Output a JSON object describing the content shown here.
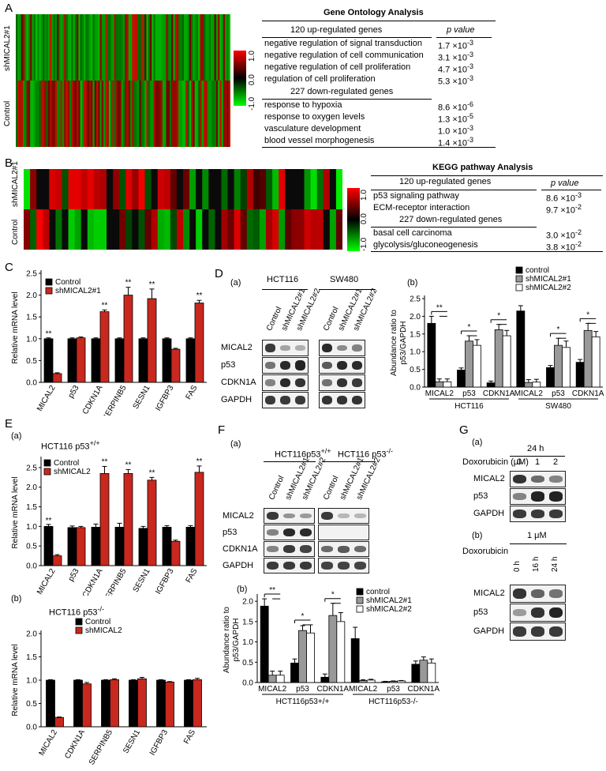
{
  "panels": [
    "A",
    "B",
    "C",
    "D",
    "E",
    "F",
    "G"
  ],
  "heatmapA": {
    "row_labels": [
      "shMICAL2#1",
      "Control"
    ],
    "scale_labels": [
      "1.0",
      "0.0",
      "-1.0"
    ],
    "colors": {
      "up": "#ff0000",
      "mid": "#000000",
      "down": "#00ff00"
    }
  },
  "go": {
    "title": "Gene Ontology Analysis",
    "col_header": "p value",
    "up_header": "120 up-regulated genes",
    "down_header": "227 down-regulated genes",
    "up_terms": [
      {
        "term": "negative regulation of signal transduction",
        "p": "1.7 ×10",
        "exp": "-3"
      },
      {
        "term": "negative regulation of cell communication",
        "p": "3.1 ×10",
        "exp": "-3"
      },
      {
        "term": "negative regulation of cell proliferation",
        "p": "4.7 ×10",
        "exp": "-3"
      },
      {
        "term": "regulation of cell proliferation",
        "p": "5.3 ×10",
        "exp": "-3"
      }
    ],
    "down_terms": [
      {
        "term": "response to hypoxia",
        "p": "8.6 ×10",
        "exp": "-6"
      },
      {
        "term": "response to oxygen levels",
        "p": "1.3 ×10",
        "exp": "-5"
      },
      {
        "term": "vasculature development",
        "p": "1.0 ×10",
        "exp": "-3"
      },
      {
        "term": "blood vessel morphogenesis",
        "p": "1.4 ×10",
        "exp": "-3"
      }
    ]
  },
  "heatmapB": {
    "row_labels": [
      "shMICAL2#1",
      "Control"
    ],
    "scale_labels": [
      "1.0",
      "0.0",
      "-1.0"
    ]
  },
  "kegg": {
    "title": "KEGG pathway Analysis",
    "col_header": "p value",
    "up_header": "120 up-regulated genes",
    "down_header": "227 down-regulated genes",
    "up_terms": [
      {
        "term": "p53 signaling pathway",
        "p": "8.6 ×10",
        "exp": "-3"
      },
      {
        "term": "ECM-receptor interaction",
        "p": "9.7 ×10",
        "exp": "-2"
      }
    ],
    "down_terms": [
      {
        "term": "basal cell carcinoma",
        "p": "3.0 ×10",
        "exp": "-2"
      },
      {
        "term": "glycolysis/gluconeogenesis",
        "p": "3.8 ×10",
        "exp": "-2"
      }
    ]
  },
  "panelD": {
    "sub_a": "(a)",
    "sub_b": "(b)",
    "cell_lines": [
      "HCT116",
      "SW480"
    ],
    "lane_labels": [
      "Control",
      "shMICAL2#1",
      "shMICAL2#2"
    ],
    "row_labels": [
      "MICAL2",
      "p53",
      "CDKN1A",
      "GAPDH"
    ]
  },
  "panelE": {
    "sub_a": "(a)",
    "title_a": "HCT116 p53",
    "sup_a": "+/+",
    "sub_b": "(b)",
    "title_b": "HCT116 p53",
    "sup_b": "-/-"
  },
  "panelF": {
    "sub_a": "(a)",
    "sub_b": "(b)",
    "groups": [
      {
        "name": "HCT116p53",
        "sup": "+/+"
      },
      {
        "name": "HCT116 p53",
        "sup": "-/-"
      }
    ],
    "lane_labels": [
      "Control",
      "shMICAL2#1",
      "shMICAL2#2"
    ],
    "row_labels": [
      "MICAL2",
      "p53",
      "CDKN1A",
      "GAPDH"
    ]
  },
  "panelG": {
    "sub_a": "(a)",
    "time_a": "24 h",
    "drug_a": "Doxorubicin (μM)",
    "doses": [
      "0",
      "1",
      "2"
    ],
    "sub_b": "(b)",
    "dose_b": "1 μM",
    "drug_b": "Doxorubicin",
    "times": [
      "0 h",
      "16 h",
      "24 h"
    ],
    "row_labels_a": [
      "MICAL2",
      "p53",
      "GAPDH"
    ],
    "row_labels_b": [
      "MICAL2",
      "p53",
      "GAPDH"
    ]
  },
  "chart_data": [
    {
      "id": "C",
      "type": "bar",
      "categories": [
        "MICAL2",
        "p53",
        "CDKN1A",
        "SERPINB5",
        "SESN1",
        "IGFBP3",
        "FAS"
      ],
      "series": [
        {
          "name": "Control",
          "color": "#000000",
          "values": [
            1.0,
            1.0,
            1.0,
            1.0,
            1.0,
            1.0,
            1.0
          ],
          "err": [
            0.02,
            0.02,
            0.02,
            0.02,
            0.02,
            0.02,
            0.02
          ]
        },
        {
          "name": "shMICAL2#1",
          "color": "#c8281e",
          "values": [
            0.2,
            1.02,
            1.62,
            2.0,
            1.92,
            0.76,
            1.82
          ],
          "err": [
            0.02,
            0.02,
            0.04,
            0.18,
            0.22,
            0.02,
            0.06
          ]
        }
      ],
      "sig": [
        "**",
        "",
        "**",
        "**",
        "**",
        "",
        "**"
      ],
      "ylabel": "Relative mRNA level",
      "yticks": [
        "0.0",
        "0.5",
        "1.0",
        "1.5",
        "2.0",
        "2.5"
      ],
      "ylim": [
        0,
        2.5
      ]
    },
    {
      "id": "D(b)",
      "type": "bar",
      "groups": [
        "HCT116",
        "SW480"
      ],
      "categories": [
        "MICAL2",
        "p53",
        "CDKN1A",
        "MICAL2",
        "p53",
        "CDKN1A"
      ],
      "series": [
        {
          "name": "control",
          "color": "#000000",
          "values": [
            1.8,
            0.48,
            0.12,
            2.15,
            0.55,
            0.7
          ],
          "err": [
            0.2,
            0.06,
            0.05,
            0.15,
            0.06,
            0.08
          ]
        },
        {
          "name": "shMICAL2#1",
          "color": "#999999",
          "values": [
            0.15,
            1.3,
            1.62,
            0.13,
            1.18,
            1.6
          ],
          "err": [
            0.08,
            0.15,
            0.15,
            0.08,
            0.2,
            0.2
          ]
        },
        {
          "name": "shMICAL2#2",
          "color": "#ffffff",
          "values": [
            0.15,
            1.18,
            1.45,
            0.14,
            1.12,
            1.42
          ],
          "err": [
            0.08,
            0.16,
            0.15,
            0.08,
            0.18,
            0.15
          ]
        }
      ],
      "sig": [
        "**",
        "*",
        "*",
        "",
        "*",
        "*"
      ],
      "ylabel": "Abundance ratio to p53/GAPDH",
      "yticks": [
        "0.0",
        "0.5",
        "1.0",
        "1.5",
        "2.0",
        "2.5"
      ],
      "ylim": [
        0,
        2.5
      ]
    },
    {
      "id": "E(a)",
      "type": "bar",
      "categories": [
        "MICAL2",
        "p53",
        "CDKN1A",
        "SERPINB5",
        "SESN1",
        "IGFBP3",
        "FAS"
      ],
      "series": [
        {
          "name": "Control",
          "color": "#000000",
          "values": [
            1.0,
            0.97,
            0.98,
            0.98,
            0.95,
            0.98,
            0.98
          ],
          "err": [
            0.05,
            0.04,
            0.08,
            0.1,
            0.05,
            0.04,
            0.04
          ]
        },
        {
          "name": "shMICAL2",
          "color": "#c8281e",
          "values": [
            0.25,
            0.97,
            2.35,
            2.35,
            2.18,
            0.62,
            2.38
          ],
          "err": [
            0.03,
            0.03,
            0.18,
            0.1,
            0.07,
            0.03,
            0.16
          ]
        }
      ],
      "sig": [
        "**",
        "",
        "**",
        "**",
        "**",
        "",
        "**"
      ],
      "ylabel": "Relative mRNA level",
      "yticks": [
        "0.0",
        "0.5",
        "1.0",
        "1.5",
        "2.0",
        "2.5"
      ],
      "ylim": [
        0,
        2.7
      ]
    },
    {
      "id": "E(b)",
      "type": "bar",
      "categories": [
        "MICAL2",
        "CDKN1A",
        "SERPINB5",
        "SESN1",
        "IGFBP3",
        "FAS"
      ],
      "series": [
        {
          "name": "Control",
          "color": "#000000",
          "values": [
            1.0,
            1.0,
            1.0,
            1.0,
            1.0,
            1.0
          ],
          "err": [
            0.01,
            0.01,
            0.01,
            0.01,
            0.01,
            0.01
          ]
        },
        {
          "name": "shMICAL2",
          "color": "#c8281e",
          "values": [
            0.2,
            0.92,
            1.01,
            1.03,
            0.96,
            1.01
          ],
          "err": [
            0.01,
            0.03,
            0.02,
            0.03,
            0.01,
            0.03
          ]
        }
      ],
      "sig": [
        "",
        "",
        "",
        "",
        "",
        ""
      ],
      "ylabel": "Relative mRNA level",
      "yticks": [
        "0.0",
        "0.5",
        "1.0",
        "1.5",
        "2.0"
      ],
      "ylim": [
        0,
        2.0
      ]
    },
    {
      "id": "F(b)",
      "type": "bar",
      "groups": [
        "HCT116p53+/+",
        "HCT116p53-/-"
      ],
      "categories": [
        "MICAL2",
        "p53",
        "CDKN1A",
        "MICAL2",
        "p53",
        "CDKN1A"
      ],
      "series": [
        {
          "name": "control",
          "color": "#000000",
          "values": [
            1.88,
            0.48,
            0.13,
            1.08,
            0.02,
            0.45
          ],
          "err": [
            0.18,
            0.1,
            0.08,
            0.28,
            0.01,
            0.08
          ]
        },
        {
          "name": "shMICAL2#1",
          "color": "#999999",
          "values": [
            0.18,
            1.28,
            1.65,
            0.05,
            0.03,
            0.55
          ],
          "err": [
            0.1,
            0.12,
            0.3,
            0.02,
            0.01,
            0.08
          ]
        },
        {
          "name": "shMICAL2#2",
          "color": "#ffffff",
          "values": [
            0.18,
            1.22,
            1.5,
            0.06,
            0.04,
            0.48
          ],
          "err": [
            0.1,
            0.2,
            0.22,
            0.02,
            0.01,
            0.1
          ]
        }
      ],
      "sig": [
        "**",
        "*",
        "*",
        "",
        "",
        ""
      ],
      "ylabel": "Abundance ratio to p53/GAPDH",
      "yticks": [
        "0.0",
        "0.5",
        "1.0",
        "1.5",
        "2.0"
      ],
      "ylim": [
        0,
        2.1
      ]
    }
  ]
}
